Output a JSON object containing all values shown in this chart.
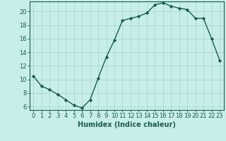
{
  "x": [
    0,
    1,
    2,
    3,
    4,
    5,
    6,
    7,
    8,
    9,
    10,
    11,
    12,
    13,
    14,
    15,
    16,
    17,
    18,
    19,
    20,
    21,
    22,
    23
  ],
  "y": [
    10.5,
    9.0,
    8.5,
    7.8,
    7.0,
    6.2,
    5.8,
    7.0,
    10.2,
    13.3,
    15.8,
    18.7,
    19.0,
    19.3,
    19.8,
    21.0,
    21.3,
    20.8,
    20.5,
    20.3,
    19.0,
    19.0,
    16.0,
    12.8
  ],
  "line_color": "#1a5c4e",
  "marker": "D",
  "marker_size": 2.2,
  "bg_color": "#c8eeea",
  "grid_color": "#a8d8d2",
  "xlabel": "Humidex (Indice chaleur)",
  "ylim": [
    5.5,
    21.5
  ],
  "xlim": [
    -0.5,
    23.5
  ],
  "yticks": [
    6,
    8,
    10,
    12,
    14,
    16,
    18,
    20
  ],
  "xticks": [
    0,
    1,
    2,
    3,
    4,
    5,
    6,
    7,
    8,
    9,
    10,
    11,
    12,
    13,
    14,
    15,
    16,
    17,
    18,
    19,
    20,
    21,
    22,
    23
  ],
  "xlabel_fontsize": 7,
  "tick_fontsize": 6,
  "line_width": 1.0
}
